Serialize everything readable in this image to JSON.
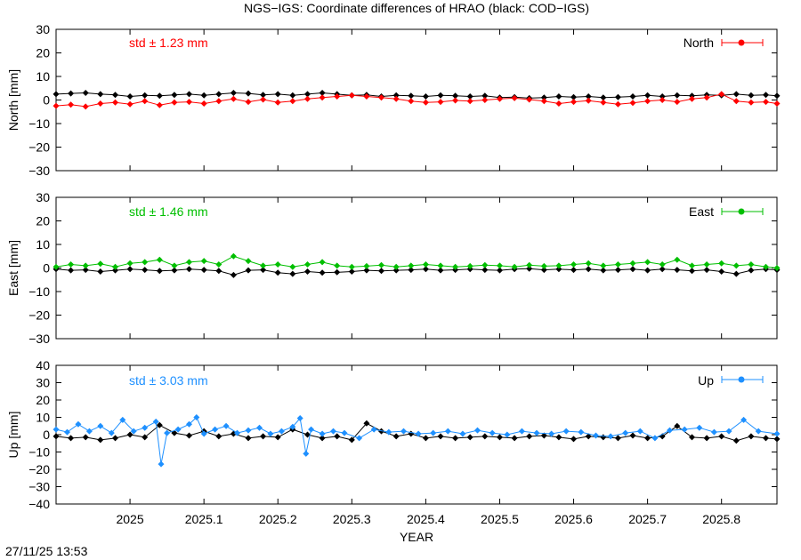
{
  "timestamp": "27/11/25 13:53",
  "chart_data": {
    "type": "scatter",
    "title": "NGS−IGS: Coordinate differences of HRAO (black: COD−IGS)",
    "xlabel": "YEAR",
    "xlim": [
      2024.9,
      2025.875
    ],
    "x_ticks": [
      2025,
      2025.1,
      2025.2,
      2025.3,
      2025.4,
      2025.5,
      2025.6,
      2025.7,
      2025.8
    ],
    "x_tick_labels": [
      "2025",
      "2025.1",
      "2025.2",
      "2025.3",
      "2025.4",
      "2025.5",
      "2025.6",
      "2025.7",
      "2025.8"
    ],
    "reference_color": "#000000",
    "panels": [
      {
        "name": "north",
        "ylabel": "North [mm]",
        "ylim": [
          -30,
          30
        ],
        "y_ticks": [
          -30,
          -20,
          -10,
          0,
          10,
          20,
          30
        ],
        "std_label": "std ± 1.23 mm",
        "legend_label": "North",
        "color": "#ff0000",
        "series": [
          {
            "name": "North",
            "x": [
              2024.9,
              2024.92,
              2024.94,
              2024.96,
              2024.98,
              2025.0,
              2025.02,
              2025.04,
              2025.06,
              2025.08,
              2025.1,
              2025.12,
              2025.14,
              2025.16,
              2025.18,
              2025.2,
              2025.22,
              2025.24,
              2025.26,
              2025.28,
              2025.3,
              2025.32,
              2025.34,
              2025.36,
              2025.38,
              2025.4,
              2025.42,
              2025.44,
              2025.46,
              2025.48,
              2025.5,
              2025.52,
              2025.54,
              2025.56,
              2025.58,
              2025.6,
              2025.62,
              2025.64,
              2025.66,
              2025.68,
              2025.7,
              2025.72,
              2025.74,
              2025.76,
              2025.78,
              2025.8,
              2025.82,
              2025.84,
              2025.86,
              2025.875
            ],
            "y": [
              -2.5,
              -2.0,
              -2.8,
              -1.5,
              -1.0,
              -1.8,
              -0.5,
              -2.2,
              -1.0,
              -0.8,
              -1.5,
              -0.5,
              0.5,
              -0.8,
              0.2,
              -1.0,
              -0.5,
              0.5,
              1.0,
              1.5,
              2.0,
              1.5,
              1.0,
              0.5,
              -0.5,
              -1.0,
              -0.8,
              -0.2,
              -0.5,
              0.0,
              0.5,
              0.8,
              0.2,
              -0.5,
              -1.5,
              -0.8,
              -0.3,
              -1.0,
              -1.8,
              -1.2,
              -0.5,
              0.0,
              -0.8,
              0.5,
              1.0,
              2.5,
              -0.5,
              -1.0,
              -0.8,
              -1.5
            ]
          },
          {
            "name": "COD−IGS",
            "x": [
              2024.9,
              2024.92,
              2024.94,
              2024.96,
              2024.98,
              2025.0,
              2025.02,
              2025.04,
              2025.06,
              2025.08,
              2025.1,
              2025.12,
              2025.14,
              2025.16,
              2025.18,
              2025.2,
              2025.22,
              2025.24,
              2025.26,
              2025.28,
              2025.3,
              2025.32,
              2025.34,
              2025.36,
              2025.38,
              2025.4,
              2025.42,
              2025.44,
              2025.46,
              2025.48,
              2025.5,
              2025.52,
              2025.54,
              2025.56,
              2025.58,
              2025.6,
              2025.62,
              2025.64,
              2025.66,
              2025.68,
              2025.7,
              2025.72,
              2025.74,
              2025.76,
              2025.78,
              2025.8,
              2025.82,
              2025.84,
              2025.86,
              2025.875
            ],
            "y": [
              2.5,
              2.8,
              3.0,
              2.5,
              2.2,
              1.5,
              2.0,
              1.8,
              2.2,
              2.5,
              2.0,
              2.5,
              3.0,
              2.8,
              2.2,
              2.5,
              2.0,
              2.5,
              3.0,
              2.5,
              2.0,
              2.2,
              1.5,
              2.0,
              1.8,
              1.5,
              2.0,
              1.8,
              1.5,
              1.8,
              1.0,
              1.2,
              0.8,
              1.0,
              1.5,
              1.2,
              1.5,
              1.0,
              1.2,
              1.5,
              2.0,
              1.5,
              2.0,
              1.8,
              2.2,
              2.0,
              2.5,
              2.0,
              2.2,
              1.8
            ]
          }
        ]
      },
      {
        "name": "east",
        "ylabel": "East [mm]",
        "ylim": [
          -30,
          30
        ],
        "y_ticks": [
          -30,
          -20,
          -10,
          0,
          10,
          20,
          30
        ],
        "std_label": "std ± 1.46 mm",
        "legend_label": "East",
        "color": "#00bf00",
        "series": [
          {
            "name": "East",
            "x": [
              2024.9,
              2024.92,
              2024.94,
              2024.96,
              2024.98,
              2025.0,
              2025.02,
              2025.04,
              2025.06,
              2025.08,
              2025.1,
              2025.12,
              2025.14,
              2025.16,
              2025.18,
              2025.2,
              2025.22,
              2025.24,
              2025.26,
              2025.28,
              2025.3,
              2025.32,
              2025.34,
              2025.36,
              2025.38,
              2025.4,
              2025.42,
              2025.44,
              2025.46,
              2025.48,
              2025.5,
              2025.52,
              2025.54,
              2025.56,
              2025.58,
              2025.6,
              2025.62,
              2025.64,
              2025.66,
              2025.68,
              2025.7,
              2025.72,
              2025.74,
              2025.76,
              2025.78,
              2025.8,
              2025.82,
              2025.84,
              2025.86,
              2025.875
            ],
            "y": [
              0.5,
              1.5,
              1.0,
              1.8,
              0.5,
              2.0,
              2.5,
              3.5,
              1.0,
              2.5,
              3.0,
              1.5,
              5.0,
              3.0,
              1.0,
              1.5,
              0.5,
              1.5,
              2.5,
              1.0,
              0.5,
              0.8,
              1.2,
              0.5,
              1.0,
              1.5,
              1.0,
              0.5,
              0.8,
              1.2,
              1.0,
              0.5,
              1.2,
              0.8,
              1.0,
              1.5,
              2.0,
              1.0,
              1.5,
              2.0,
              2.5,
              1.5,
              3.5,
              1.0,
              1.5,
              2.0,
              1.0,
              1.5,
              0.5,
              0.0
            ]
          },
          {
            "name": "COD−IGS",
            "x": [
              2024.9,
              2024.92,
              2024.94,
              2024.96,
              2024.98,
              2025.0,
              2025.02,
              2025.04,
              2025.06,
              2025.08,
              2025.1,
              2025.12,
              2025.14,
              2025.16,
              2025.18,
              2025.2,
              2025.22,
              2025.24,
              2025.26,
              2025.28,
              2025.3,
              2025.32,
              2025.34,
              2025.36,
              2025.38,
              2025.4,
              2025.42,
              2025.44,
              2025.46,
              2025.48,
              2025.5,
              2025.52,
              2025.54,
              2025.56,
              2025.58,
              2025.6,
              2025.62,
              2025.64,
              2025.66,
              2025.68,
              2025.7,
              2025.72,
              2025.74,
              2025.76,
              2025.78,
              2025.8,
              2025.82,
              2025.84,
              2025.86,
              2025.875
            ],
            "y": [
              -0.5,
              -1.0,
              -0.8,
              -1.5,
              -1.0,
              -0.5,
              -0.8,
              -1.2,
              -1.0,
              -0.5,
              -0.8,
              -1.2,
              -3.0,
              -1.0,
              -0.8,
              -2.0,
              -2.5,
              -1.5,
              -2.0,
              -1.8,
              -1.5,
              -1.0,
              -1.2,
              -1.0,
              -0.8,
              -0.5,
              -1.0,
              -0.8,
              -0.5,
              -0.8,
              -1.0,
              -0.5,
              -0.3,
              -0.8,
              -0.5,
              -0.8,
              -0.5,
              -1.0,
              -0.8,
              -0.5,
              -1.0,
              -0.5,
              -0.8,
              -1.2,
              -0.8,
              -1.5,
              -2.5,
              -1.0,
              -0.5,
              -0.8
            ]
          }
        ]
      },
      {
        "name": "up",
        "ylabel": "Up [mm]",
        "ylim": [
          -40,
          40
        ],
        "y_ticks": [
          -40,
          -30,
          -20,
          -10,
          0,
          10,
          20,
          30,
          40
        ],
        "std_label": "std ± 3.03 mm",
        "legend_label": "Up",
        "color": "#1e90ff",
        "series": [
          {
            "name": "Up",
            "x": [
              2024.9,
              2024.915,
              2024.93,
              2024.945,
              2024.96,
              2024.975,
              2024.99,
              2025.005,
              2025.02,
              2025.035,
              2025.042,
              2025.05,
              2025.065,
              2025.08,
              2025.09,
              2025.1,
              2025.115,
              2025.13,
              2025.145,
              2025.16,
              2025.175,
              2025.19,
              2025.205,
              2025.22,
              2025.23,
              2025.238,
              2025.245,
              2025.26,
              2025.275,
              2025.29,
              2025.31,
              2025.33,
              2025.35,
              2025.37,
              2025.39,
              2025.41,
              2025.43,
              2025.45,
              2025.47,
              2025.49,
              2025.51,
              2025.53,
              2025.55,
              2025.57,
              2025.59,
              2025.61,
              2025.63,
              2025.65,
              2025.67,
              2025.69,
              2025.71,
              2025.73,
              2025.75,
              2025.77,
              2025.79,
              2025.81,
              2025.83,
              2025.85,
              2025.875
            ],
            "y": [
              3.0,
              1.5,
              6.0,
              2.0,
              5.0,
              1.0,
              8.5,
              2.0,
              4.0,
              7.5,
              -17.0,
              1.0,
              3.0,
              6.0,
              10.0,
              0.5,
              3.0,
              5.0,
              1.0,
              2.5,
              4.0,
              0.5,
              2.0,
              4.5,
              9.5,
              -11.0,
              3.0,
              0.5,
              2.0,
              1.0,
              -2.0,
              3.0,
              1.5,
              2.0,
              0.5,
              1.0,
              2.0,
              0.5,
              2.5,
              1.0,
              0.0,
              2.0,
              1.0,
              0.5,
              2.0,
              1.5,
              -0.5,
              -1.0,
              1.0,
              2.0,
              -2.0,
              2.5,
              3.0,
              4.0,
              1.5,
              2.0,
              8.5,
              2.0,
              0.5
            ]
          },
          {
            "name": "COD−IGS",
            "x": [
              2024.9,
              2024.92,
              2024.94,
              2024.96,
              2024.98,
              2025.0,
              2025.02,
              2025.04,
              2025.06,
              2025.08,
              2025.1,
              2025.12,
              2025.14,
              2025.16,
              2025.18,
              2025.2,
              2025.22,
              2025.24,
              2025.26,
              2025.28,
              2025.3,
              2025.32,
              2025.34,
              2025.36,
              2025.38,
              2025.4,
              2025.42,
              2025.44,
              2025.46,
              2025.48,
              2025.5,
              2025.52,
              2025.54,
              2025.56,
              2025.58,
              2025.6,
              2025.62,
              2025.64,
              2025.66,
              2025.68,
              2025.7,
              2025.72,
              2025.74,
              2025.76,
              2025.78,
              2025.8,
              2025.82,
              2025.84,
              2025.86,
              2025.875
            ],
            "y": [
              -1.0,
              -2.0,
              -1.5,
              -3.0,
              -2.0,
              0.0,
              -1.5,
              5.5,
              1.0,
              -0.5,
              2.0,
              -1.0,
              0.5,
              -2.0,
              -1.0,
              -1.5,
              3.0,
              0.0,
              -2.0,
              -1.0,
              -3.0,
              6.5,
              2.0,
              -1.0,
              0.5,
              -2.0,
              -1.0,
              -2.0,
              -1.5,
              -1.0,
              -1.5,
              -2.0,
              -1.0,
              -0.5,
              -1.5,
              -2.5,
              -1.0,
              -1.5,
              -2.0,
              -0.5,
              -2.0,
              -1.0,
              5.0,
              -1.5,
              -2.0,
              -1.0,
              -3.5,
              -1.0,
              -2.0,
              -2.5
            ]
          }
        ]
      }
    ]
  }
}
